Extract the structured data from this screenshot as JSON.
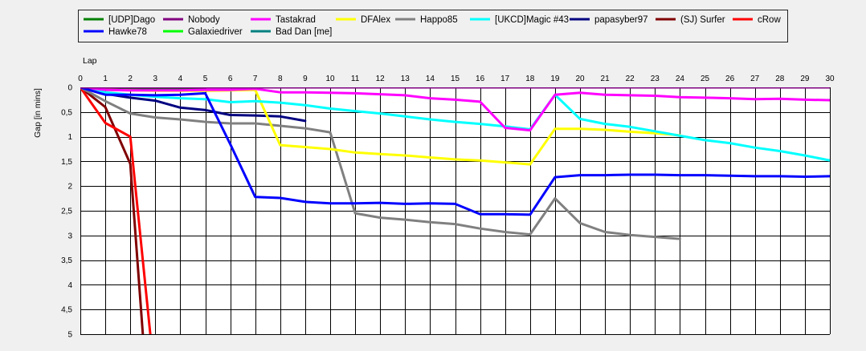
{
  "chart_data": {
    "type": "line",
    "title": "",
    "xlabel": "Lap",
    "ylabel": "Gap [in mins]",
    "xlim": [
      0,
      30
    ],
    "ylim": [
      0,
      5
    ],
    "y_inverted": true,
    "grid": true,
    "legend_position": "top",
    "x_ticks": [
      "0",
      "1",
      "2",
      "3",
      "4",
      "5",
      "6",
      "7",
      "8",
      "9",
      "10",
      "11",
      "12",
      "13",
      "14",
      "15",
      "16",
      "17",
      "18",
      "19",
      "20",
      "21",
      "22",
      "23",
      "24",
      "25",
      "26",
      "27",
      "28",
      "29",
      "30"
    ],
    "y_ticks": [
      "0",
      "0,5",
      "1",
      "1,5",
      "2",
      "2,5",
      "3",
      "3,5",
      "4",
      "4,5",
      "5"
    ],
    "series": [
      {
        "name": "[UDP]Dago",
        "color": "#008000",
        "x": [
          0,
          1,
          2,
          3,
          4,
          5
        ],
        "y": [
          0,
          0.02,
          0.03,
          0.02,
          0.03,
          0.03
        ]
      },
      {
        "name": "Nobody",
        "color": "#800080",
        "x": [
          0,
          1,
          2,
          3,
          4,
          5,
          6,
          7,
          8,
          9,
          10,
          11,
          12,
          13,
          14,
          15,
          16,
          17,
          18,
          19,
          20,
          21,
          22,
          23,
          24,
          25,
          26,
          27,
          28,
          29,
          30
        ],
        "y": [
          0,
          0,
          0,
          0,
          0,
          0,
          0,
          0,
          0,
          0,
          0,
          0,
          0,
          0,
          0,
          0,
          0,
          0,
          0,
          0,
          0,
          0,
          0,
          0,
          0,
          0,
          0,
          0,
          0,
          0,
          0
        ]
      },
      {
        "name": "Tastakrad",
        "color": "#ff00ff",
        "x": [
          0,
          1,
          2,
          3,
          4,
          5,
          6,
          7,
          8,
          9,
          10,
          11,
          12,
          13,
          14,
          15,
          16,
          17,
          18,
          19,
          20,
          21,
          22,
          23,
          24,
          25,
          26,
          27,
          28,
          29,
          30
        ],
        "y": [
          0,
          0.05,
          0.06,
          0.06,
          0.06,
          0.05,
          0.05,
          0.03,
          0.1,
          0.1,
          0.11,
          0.12,
          0.14,
          0.16,
          0.22,
          0.25,
          0.29,
          0.82,
          0.87,
          0.15,
          0.11,
          0.15,
          0.16,
          0.17,
          0.2,
          0.21,
          0.22,
          0.24,
          0.23,
          0.25,
          0.26
        ]
      },
      {
        "name": "DFAlex",
        "color": "#ffff00",
        "x": [
          0,
          1,
          2,
          3,
          4,
          5,
          6,
          7,
          8,
          9,
          10,
          11,
          12,
          13,
          14,
          15,
          16,
          17,
          18,
          19,
          20,
          21,
          22,
          23,
          24
        ],
        "y": [
          0,
          0.05,
          0.06,
          0.07,
          0.07,
          0.07,
          0.06,
          0.05,
          1.17,
          1.21,
          1.25,
          1.32,
          1.35,
          1.38,
          1.42,
          1.46,
          1.48,
          1.52,
          1.56,
          0.84,
          0.84,
          0.86,
          0.9,
          0.93,
          0.97
        ]
      },
      {
        "name": "Happo85",
        "color": "#808080",
        "x": [
          0,
          1,
          2,
          3,
          4,
          5,
          6,
          7,
          8,
          9,
          10,
          11,
          12,
          13,
          14,
          15,
          16,
          17,
          18,
          19,
          20,
          21,
          22,
          23,
          24
        ],
        "y": [
          0,
          0.28,
          0.53,
          0.61,
          0.65,
          0.7,
          0.73,
          0.73,
          0.78,
          0.83,
          0.91,
          2.55,
          2.64,
          2.68,
          2.73,
          2.77,
          2.86,
          2.93,
          2.98,
          2.25,
          2.75,
          2.93,
          2.99,
          3.03,
          3.07
        ]
      },
      {
        "name": "[UKCD]Magic #43",
        "color": "#00ffff",
        "x": [
          0,
          1,
          2,
          3,
          4,
          5,
          6,
          7,
          8,
          9,
          10,
          11,
          12,
          13,
          14,
          15,
          16,
          17,
          18,
          19,
          20,
          21,
          22,
          23,
          24,
          25,
          26,
          27,
          28,
          29,
          30
        ],
        "y": [
          0,
          0.1,
          0.15,
          0.19,
          0.22,
          0.24,
          0.3,
          0.28,
          0.31,
          0.36,
          0.43,
          0.48,
          0.53,
          0.59,
          0.65,
          0.7,
          0.74,
          0.79,
          0.85,
          0.15,
          0.64,
          0.74,
          0.8,
          0.89,
          0.98,
          1.07,
          1.13,
          1.22,
          1.29,
          1.38,
          1.48
        ]
      },
      {
        "name": "papasyber97",
        "color": "#000080",
        "x": [
          0,
          1,
          2,
          3,
          4,
          5,
          6,
          7,
          8,
          9
        ],
        "y": [
          0,
          0.13,
          0.21,
          0.27,
          0.41,
          0.46,
          0.56,
          0.57,
          0.59,
          0.68
        ]
      },
      {
        "name": "(SJ) Surfer",
        "color": "#800000",
        "x": [
          0,
          1,
          2,
          2.5
        ],
        "y": [
          0,
          0.4,
          1.55,
          5.0
        ]
      },
      {
        "name": "cRow",
        "color": "#ff0000",
        "x": [
          0,
          1,
          2,
          2.8
        ],
        "y": [
          0,
          0.72,
          1.0,
          5.0
        ]
      },
      {
        "name": "Hawke78",
        "color": "#0000ff",
        "x": [
          0,
          1,
          2,
          3,
          4,
          5,
          6,
          7,
          8,
          9,
          10,
          11,
          12,
          13,
          14,
          15,
          16,
          17,
          18,
          19,
          20,
          21,
          22,
          23,
          24,
          25,
          26,
          27,
          28,
          29,
          30
        ],
        "y": [
          0,
          0.15,
          0.15,
          0.16,
          0.15,
          0.12,
          1.15,
          2.22,
          2.24,
          2.32,
          2.35,
          2.35,
          2.34,
          2.36,
          2.35,
          2.36,
          2.57,
          2.57,
          2.58,
          1.82,
          1.78,
          1.78,
          1.77,
          1.77,
          1.78,
          1.78,
          1.79,
          1.8,
          1.8,
          1.81,
          1.8
        ]
      },
      {
        "name": "Galaxiedriver",
        "color": "#00ff00",
        "x": [
          0,
          1,
          2,
          3
        ],
        "y": [
          0,
          0.03,
          0.04,
          0.05
        ]
      },
      {
        "name": "Bad Dan [me]",
        "color": "#008080",
        "x": [
          0,
          30
        ],
        "y": [
          0,
          0
        ]
      }
    ]
  }
}
